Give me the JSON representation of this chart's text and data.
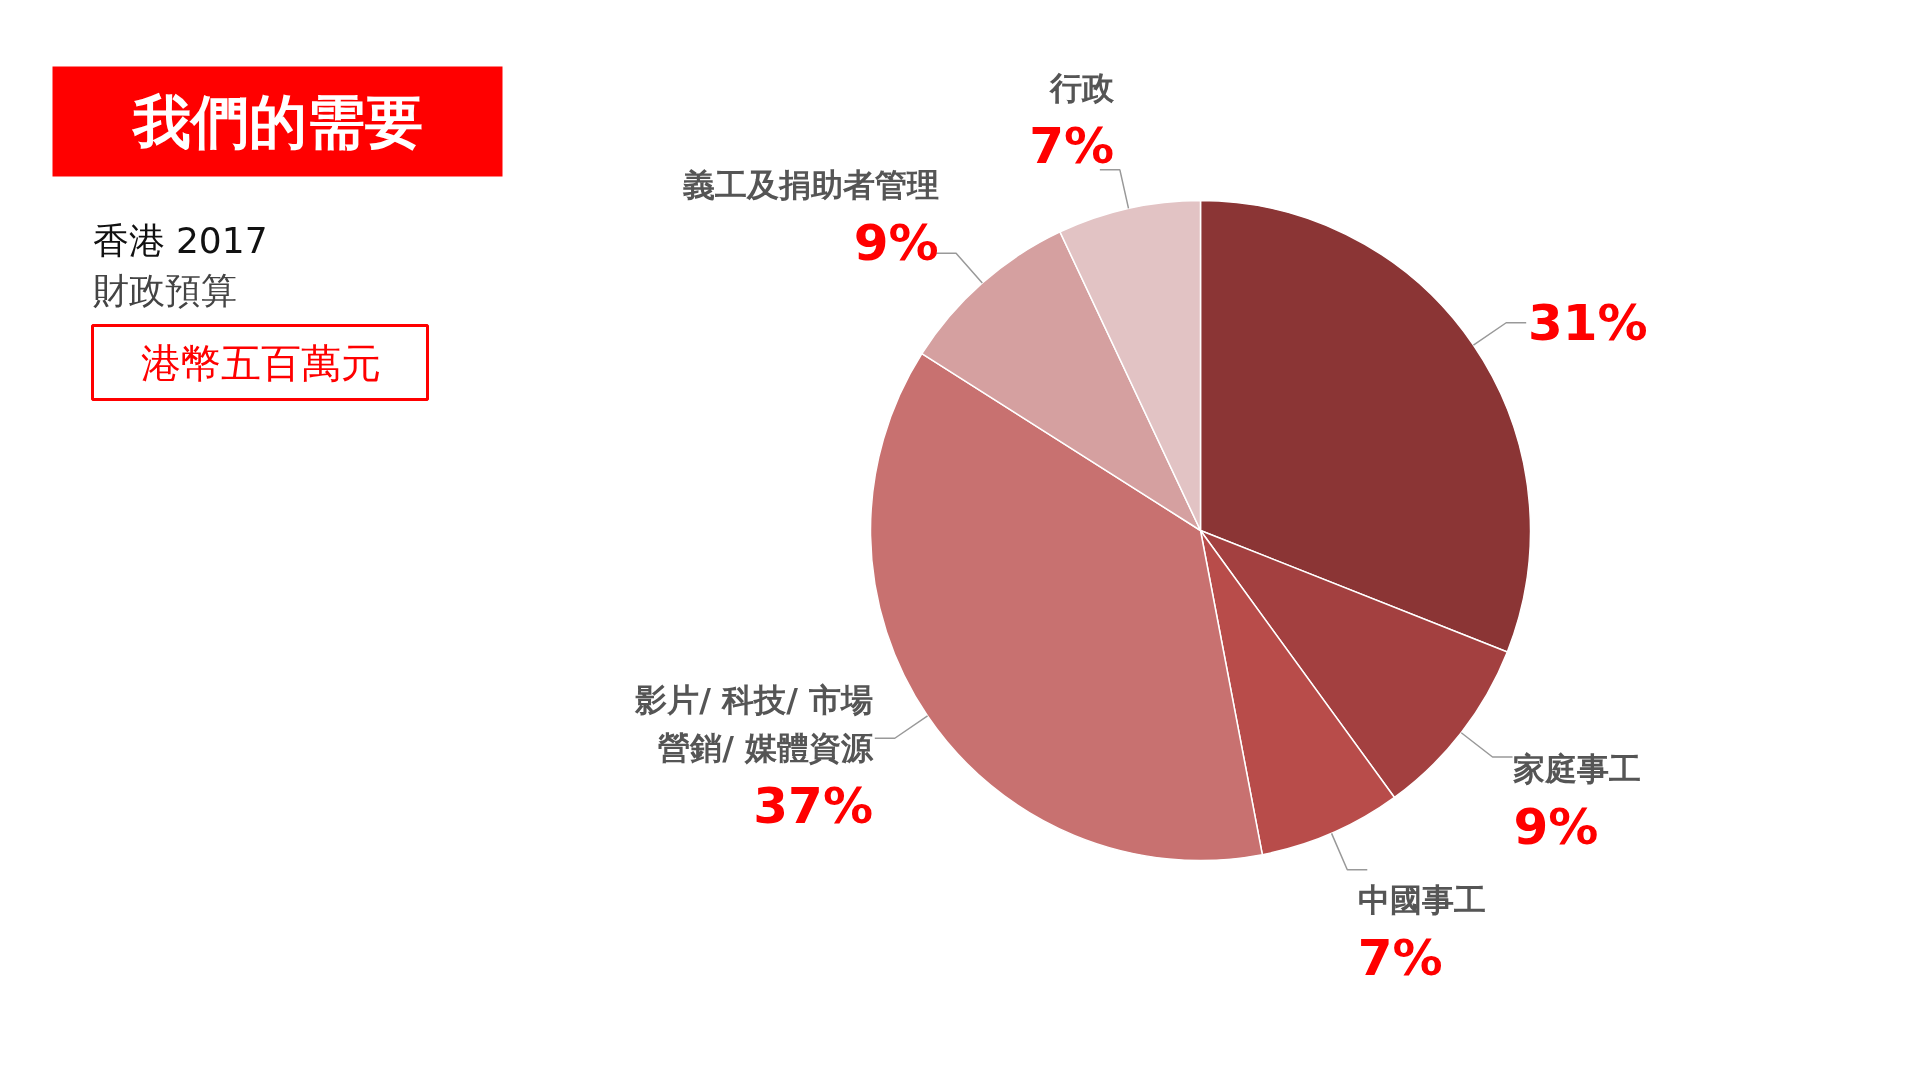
{
  "chart_data": {
    "type": "pie",
    "title": "我們的需要",
    "subtitle": "香港 2017\n財政預算",
    "annotations": [
      "港幣五百萬元"
    ],
    "categories": [
      null,
      "家庭事工",
      "中國事工",
      "影片/ 科技/ 市場營銷/ 媒體資源",
      "義工及捐助者管理",
      "行政"
    ],
    "values": [
      31,
      9,
      7,
      37,
      9,
      7
    ],
    "value_labels": [
      "31%",
      "9%",
      "7%",
      "37%",
      "9%",
      "7%"
    ],
    "colors": [
      "#8b3535",
      "#a34040",
      "#b84c4a",
      "#c87170",
      "#d5a0a0",
      "#e2c3c4"
    ]
  }
}
